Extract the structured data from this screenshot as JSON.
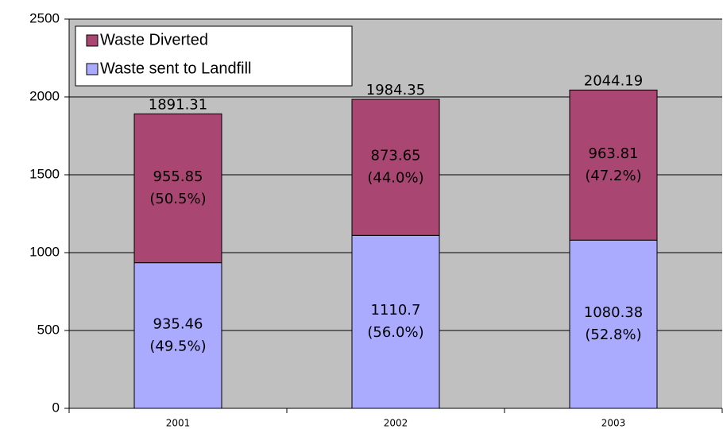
{
  "chart_data": {
    "type": "stacked_bar",
    "categories": [
      "2001",
      "2002",
      "2003"
    ],
    "series": [
      {
        "name": "Waste sent to Landfill",
        "color": "#aaaaff",
        "values": [
          935.46,
          1110.7,
          1080.38
        ],
        "percent_labels": [
          "(49.5%)",
          "(56.0%)",
          "(52.8%)"
        ]
      },
      {
        "name": "Waste Diverted",
        "color": "#a94672",
        "values": [
          955.85,
          873.65,
          963.81
        ],
        "percent_labels": [
          "(50.5%)",
          "(44.0%)",
          "(47.2%)"
        ]
      }
    ],
    "totals": [
      1891.31,
      1984.35,
      2044.19
    ],
    "ylim": [
      0,
      2500
    ],
    "yticks": [
      0,
      500,
      1000,
      1500,
      2000,
      2500
    ],
    "grid": true
  }
}
